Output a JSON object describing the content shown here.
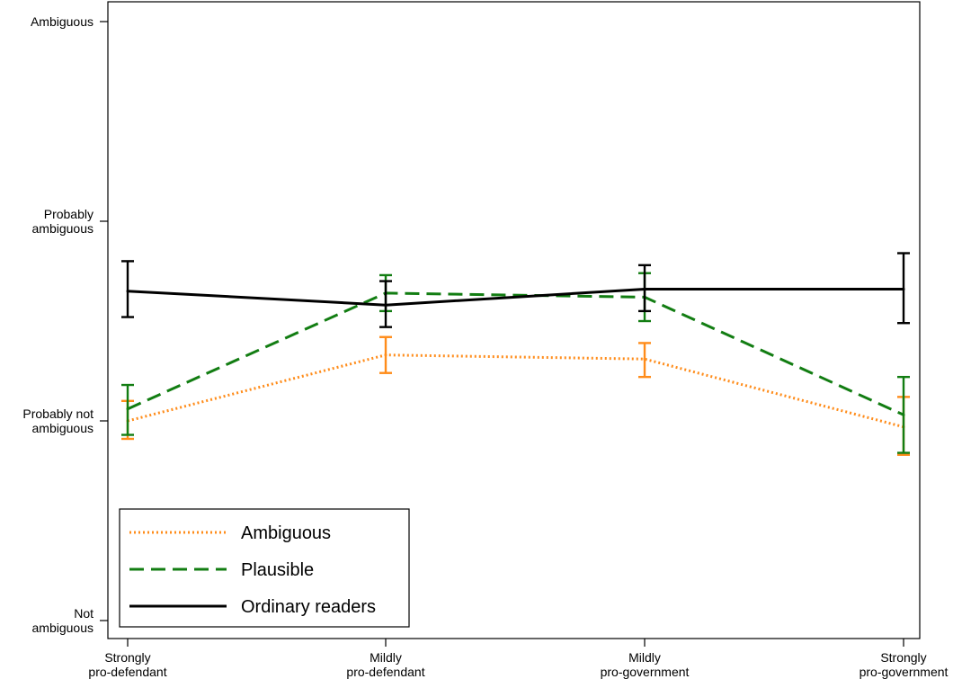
{
  "chart_data": {
    "type": "line",
    "categories": [
      [
        "Strongly",
        "pro-defendant"
      ],
      [
        "Mildly",
        "pro-defendant"
      ],
      [
        "Mildly",
        "pro-government"
      ],
      [
        "Strongly",
        "pro-government"
      ]
    ],
    "y_ticks": [
      {
        "value": 0,
        "lines": [
          "Not",
          "ambiguous"
        ]
      },
      {
        "value": 1,
        "lines": [
          "Probably not",
          "ambiguous"
        ]
      },
      {
        "value": 2,
        "lines": [
          "Probably",
          "ambiguous"
        ]
      },
      {
        "value": 3,
        "lines": [
          "Ambiguous"
        ]
      }
    ],
    "ylim": [
      0,
      3
    ],
    "grid": false,
    "legend_position": "bottom-left",
    "series": [
      {
        "name": "Ambiguous",
        "color": "#ff8c1a",
        "style": "dotted",
        "values": [
          1.0,
          1.33,
          1.31,
          0.97
        ],
        "ci_low": [
          0.91,
          1.24,
          1.22,
          0.83
        ],
        "ci_high": [
          1.1,
          1.42,
          1.39,
          1.12
        ]
      },
      {
        "name": "Plausible",
        "color": "#127d12",
        "style": "dashed",
        "values": [
          1.06,
          1.64,
          1.62,
          1.03
        ],
        "ci_low": [
          0.93,
          1.55,
          1.5,
          0.84
        ],
        "ci_high": [
          1.18,
          1.73,
          1.74,
          1.22
        ]
      },
      {
        "name": "Ordinary readers",
        "color": "#000000",
        "style": "solid",
        "values": [
          1.65,
          1.58,
          1.66,
          1.66
        ],
        "ci_low": [
          1.52,
          1.47,
          1.55,
          1.49
        ],
        "ci_high": [
          1.8,
          1.7,
          1.78,
          1.84
        ]
      }
    ]
  }
}
